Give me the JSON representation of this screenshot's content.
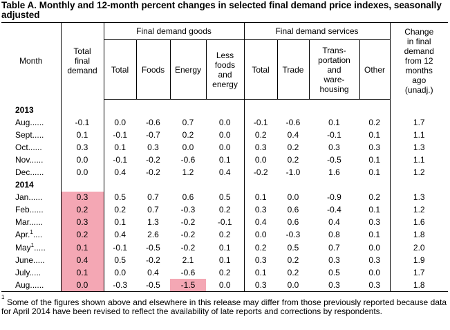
{
  "title": "Table A. Monthly and 12-month percent changes in selected final demand price indexes, seasonally adjusted",
  "headers": {
    "month": "Month",
    "total_final_demand": [
      "Total",
      "final",
      "demand"
    ],
    "goods_group": "Final demand goods",
    "services_group": "Final demand services",
    "change": [
      "Change",
      "in final",
      "demand",
      "from 12",
      "months",
      "ago",
      "(unadj.)"
    ],
    "goods_total": "Total",
    "foods": "Foods",
    "energy": "Energy",
    "less_foods_energy": [
      "Less",
      "foods",
      "and",
      "energy"
    ],
    "services_total": "Total",
    "trade": "Trade",
    "transport": [
      "Trans-",
      "portation",
      "and",
      "ware-",
      "housing"
    ],
    "other": "Other"
  },
  "years": {
    "y2013": "2013",
    "y2014": "2014"
  },
  "rows2013": [
    {
      "month": "Aug.",
      "sup": "",
      "tfd": "-0.1",
      "gt": "0.0",
      "foods": "-0.6",
      "energy": "0.7",
      "lfe": "0.0",
      "st": "-0.1",
      "trade": "-0.6",
      "trans": "0.1",
      "other": "0.2",
      "chg": "1.7"
    },
    {
      "month": "Sept.",
      "sup": "",
      "tfd": "0.1",
      "gt": "-0.1",
      "foods": "-0.7",
      "energy": "0.2",
      "lfe": "0.0",
      "st": "0.2",
      "trade": "0.4",
      "trans": "-0.1",
      "other": "0.1",
      "chg": "1.1"
    },
    {
      "month": "Oct.",
      "sup": "",
      "tfd": "0.3",
      "gt": "0.1",
      "foods": "0.3",
      "energy": "0.0",
      "lfe": "0.0",
      "st": "0.3",
      "trade": "0.2",
      "trans": "0.3",
      "other": "0.3",
      "chg": "1.3"
    },
    {
      "month": "Nov.",
      "sup": "",
      "tfd": "0.0",
      "gt": "-0.1",
      "foods": "-0.2",
      "energy": "-0.6",
      "lfe": "0.1",
      "st": "0.0",
      "trade": "0.2",
      "trans": "-0.5",
      "other": "0.1",
      "chg": "1.1"
    },
    {
      "month": "Dec.",
      "sup": "",
      "tfd": "0.0",
      "gt": "0.4",
      "foods": "-0.2",
      "energy": "1.2",
      "lfe": "0.4",
      "st": "-0.2",
      "trade": "-1.0",
      "trans": "1.6",
      "other": "0.1",
      "chg": "1.2"
    }
  ],
  "rows2014": [
    {
      "month": "Jan.",
      "sup": "",
      "tfd": "0.3",
      "gt": "0.5",
      "foods": "0.7",
      "energy": "0.6",
      "lfe": "0.5",
      "st": "0.1",
      "trade": "0.0",
      "trans": "-0.9",
      "other": "0.2",
      "chg": "1.3"
    },
    {
      "month": "Feb.",
      "sup": "",
      "tfd": "0.2",
      "gt": "0.2",
      "foods": "0.7",
      "energy": "-0.3",
      "lfe": "0.2",
      "st": "0.3",
      "trade": "0.6",
      "trans": "-0.4",
      "other": "0.1",
      "chg": "1.2"
    },
    {
      "month": "Mar.",
      "sup": "",
      "tfd": "0.3",
      "gt": "0.1",
      "foods": "1.3",
      "energy": "-0.2",
      "lfe": "-0.1",
      "st": "0.4",
      "trade": "0.6",
      "trans": "0.4",
      "other": "0.3",
      "chg": "1.6"
    },
    {
      "month": "Apr.",
      "sup": "1",
      "tfd": "0.2",
      "gt": "0.4",
      "foods": "2.6",
      "energy": "-0.2",
      "lfe": "0.2",
      "st": "0.0",
      "trade": "-0.3",
      "trans": "0.8",
      "other": "0.1",
      "chg": "1.8"
    },
    {
      "month": "May",
      "sup": "1",
      "tfd": "0.1",
      "gt": "-0.1",
      "foods": "-0.5",
      "energy": "-0.2",
      "lfe": "0.1",
      "st": "0.2",
      "trade": "0.5",
      "trans": "0.7",
      "other": "0.0",
      "chg": "2.0"
    },
    {
      "month": "June",
      "sup": "",
      "tfd": "0.4",
      "gt": "0.5",
      "foods": "-0.2",
      "energy": "2.1",
      "lfe": "0.1",
      "st": "0.3",
      "trade": "0.2",
      "trans": "0.3",
      "other": "0.3",
      "chg": "1.9"
    },
    {
      "month": "July",
      "sup": "",
      "tfd": "0.1",
      "gt": "0.0",
      "foods": "0.4",
      "energy": "-0.6",
      "lfe": "0.2",
      "st": "0.1",
      "trade": "0.2",
      "trans": "0.5",
      "other": "0.0",
      "chg": "1.7"
    },
    {
      "month": "Aug.",
      "sup": "",
      "tfd": "0.0",
      "gt": "-0.3",
      "foods": "-0.5",
      "energy": "-1.5",
      "lfe": "0.0",
      "st": "0.3",
      "trade": "0.0",
      "trans": "0.3",
      "other": "0.3",
      "chg": "1.8"
    }
  ],
  "highlights": {
    "color": "#f4a7b4",
    "tfd_2014_all": true,
    "energy_aug_2014": true
  },
  "footnote": {
    "marker": "1",
    "text": "Some of the figures shown above and elsewhere in this release may differ from those previously reported because data for April 2014 have been revised to reflect the availability of late reports and corrections by respondents."
  }
}
